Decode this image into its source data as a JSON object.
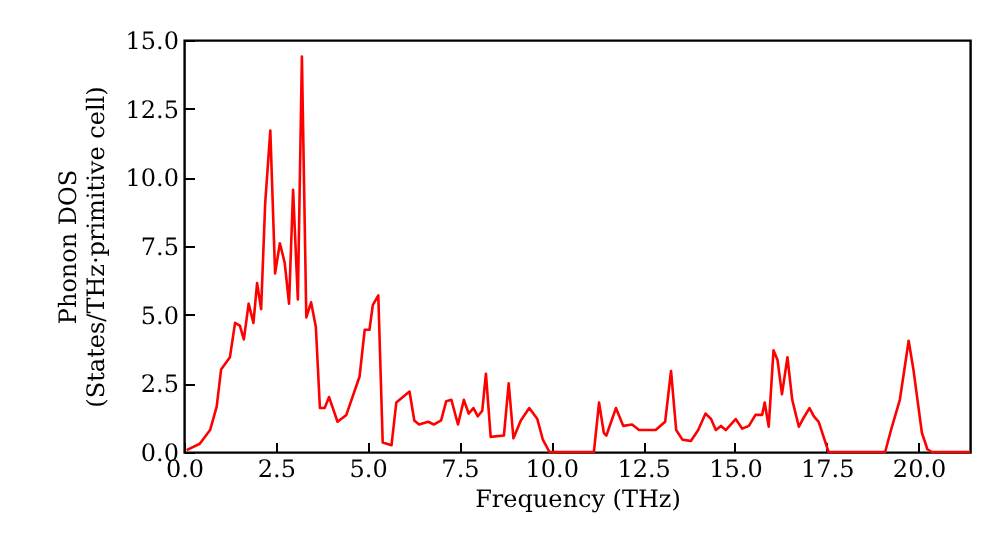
{
  "chart_data": {
    "type": "line",
    "xlabel": "Frequency (THz)",
    "ylabel": "Phonon DOS\n(States/THz·primitive cell)",
    "xlim": [
      0,
      21.4
    ],
    "ylim": [
      0,
      15
    ],
    "xticks": [
      {
        "value": 0,
        "label": "0.0"
      },
      {
        "value": 2.5,
        "label": "2.5"
      },
      {
        "value": 5,
        "label": "5.0"
      },
      {
        "value": 7.5,
        "label": "7.5"
      },
      {
        "value": 10,
        "label": "10.0"
      },
      {
        "value": 12.5,
        "label": "12.5"
      },
      {
        "value": 15,
        "label": "15.0"
      },
      {
        "value": 17.5,
        "label": "17.5"
      },
      {
        "value": 20,
        "label": "20.0"
      }
    ],
    "yticks": [
      {
        "value": 0,
        "label": "0.0"
      },
      {
        "value": 2.5,
        "label": "2.5"
      },
      {
        "value": 5,
        "label": "5.0"
      },
      {
        "value": 7.5,
        "label": "7.5"
      },
      {
        "value": 10,
        "label": "10.0"
      },
      {
        "value": 12.5,
        "label": "12.5"
      },
      {
        "value": 15,
        "label": "15.0"
      }
    ],
    "grid": false,
    "legend": false,
    "marker": "none",
    "line_style": "solid",
    "series": [
      {
        "color": "#ff0000",
        "x": [
          0.07,
          0.43,
          0.71,
          0.89,
          1.01,
          1.25,
          1.39,
          1.52,
          1.63,
          1.76,
          1.89,
          1.99,
          2.1,
          2.21,
          2.35,
          2.48,
          2.61,
          2.74,
          2.86,
          2.97,
          3.1,
          3.21,
          3.33,
          3.46,
          3.59,
          3.7,
          3.83,
          3.95,
          4.18,
          4.42,
          4.78,
          4.92,
          5.05,
          5.14,
          5.29,
          5.41,
          5.65,
          5.78,
          6.14,
          6.27,
          6.4,
          6.65,
          6.8,
          7.0,
          7.14,
          7.28,
          7.46,
          7.62,
          7.75,
          7.88,
          8.0,
          8.12,
          8.22,
          8.35,
          8.71,
          8.84,
          8.97,
          9.17,
          9.4,
          9.62,
          9.77,
          9.95,
          11.16,
          11.3,
          11.43,
          11.5,
          11.76,
          11.96,
          12.2,
          12.39,
          12.84,
          13.1,
          13.26,
          13.4,
          13.57,
          13.8,
          14.0,
          14.2,
          14.35,
          14.48,
          14.62,
          14.75,
          15.02,
          15.2,
          15.38,
          15.56,
          15.74,
          15.81,
          15.92,
          16.05,
          16.16,
          16.28,
          16.43,
          16.56,
          16.74,
          16.85,
          17.03,
          17.15,
          17.28,
          17.55,
          19.09,
          19.27,
          19.49,
          19.73,
          19.86,
          20.09,
          20.24,
          20.36,
          21.4
        ],
        "values": [
          0.07,
          0.3,
          0.8,
          1.65,
          3.0,
          3.45,
          4.7,
          4.6,
          4.1,
          5.4,
          4.7,
          6.15,
          5.2,
          9.05,
          11.7,
          6.5,
          7.6,
          6.9,
          5.4,
          9.55,
          5.55,
          14.4,
          4.9,
          5.45,
          4.55,
          1.6,
          1.6,
          2.0,
          1.1,
          1.35,
          2.75,
          4.45,
          4.45,
          5.35,
          5.7,
          0.35,
          0.25,
          1.8,
          2.2,
          1.15,
          1.0,
          1.1,
          1.0,
          1.15,
          1.85,
          1.9,
          1.0,
          1.9,
          1.4,
          1.6,
          1.3,
          1.5,
          2.85,
          0.55,
          0.6,
          2.5,
          0.5,
          1.15,
          1.6,
          1.2,
          0.45,
          0,
          0,
          1.8,
          0.7,
          0.6,
          1.6,
          0.95,
          1.0,
          0.8,
          0.8,
          1.1,
          2.95,
          0.8,
          0.45,
          0.4,
          0.8,
          1.4,
          1.2,
          0.8,
          0.95,
          0.8,
          1.2,
          0.85,
          0.95,
          1.35,
          1.35,
          1.8,
          0.92,
          3.7,
          3.35,
          2.1,
          3.45,
          1.9,
          0.92,
          1.2,
          1.6,
          1.3,
          1.1,
          0,
          0,
          0.9,
          1.9,
          4.05,
          3.0,
          0.7,
          0.1,
          0,
          0
        ]
      }
    ]
  }
}
